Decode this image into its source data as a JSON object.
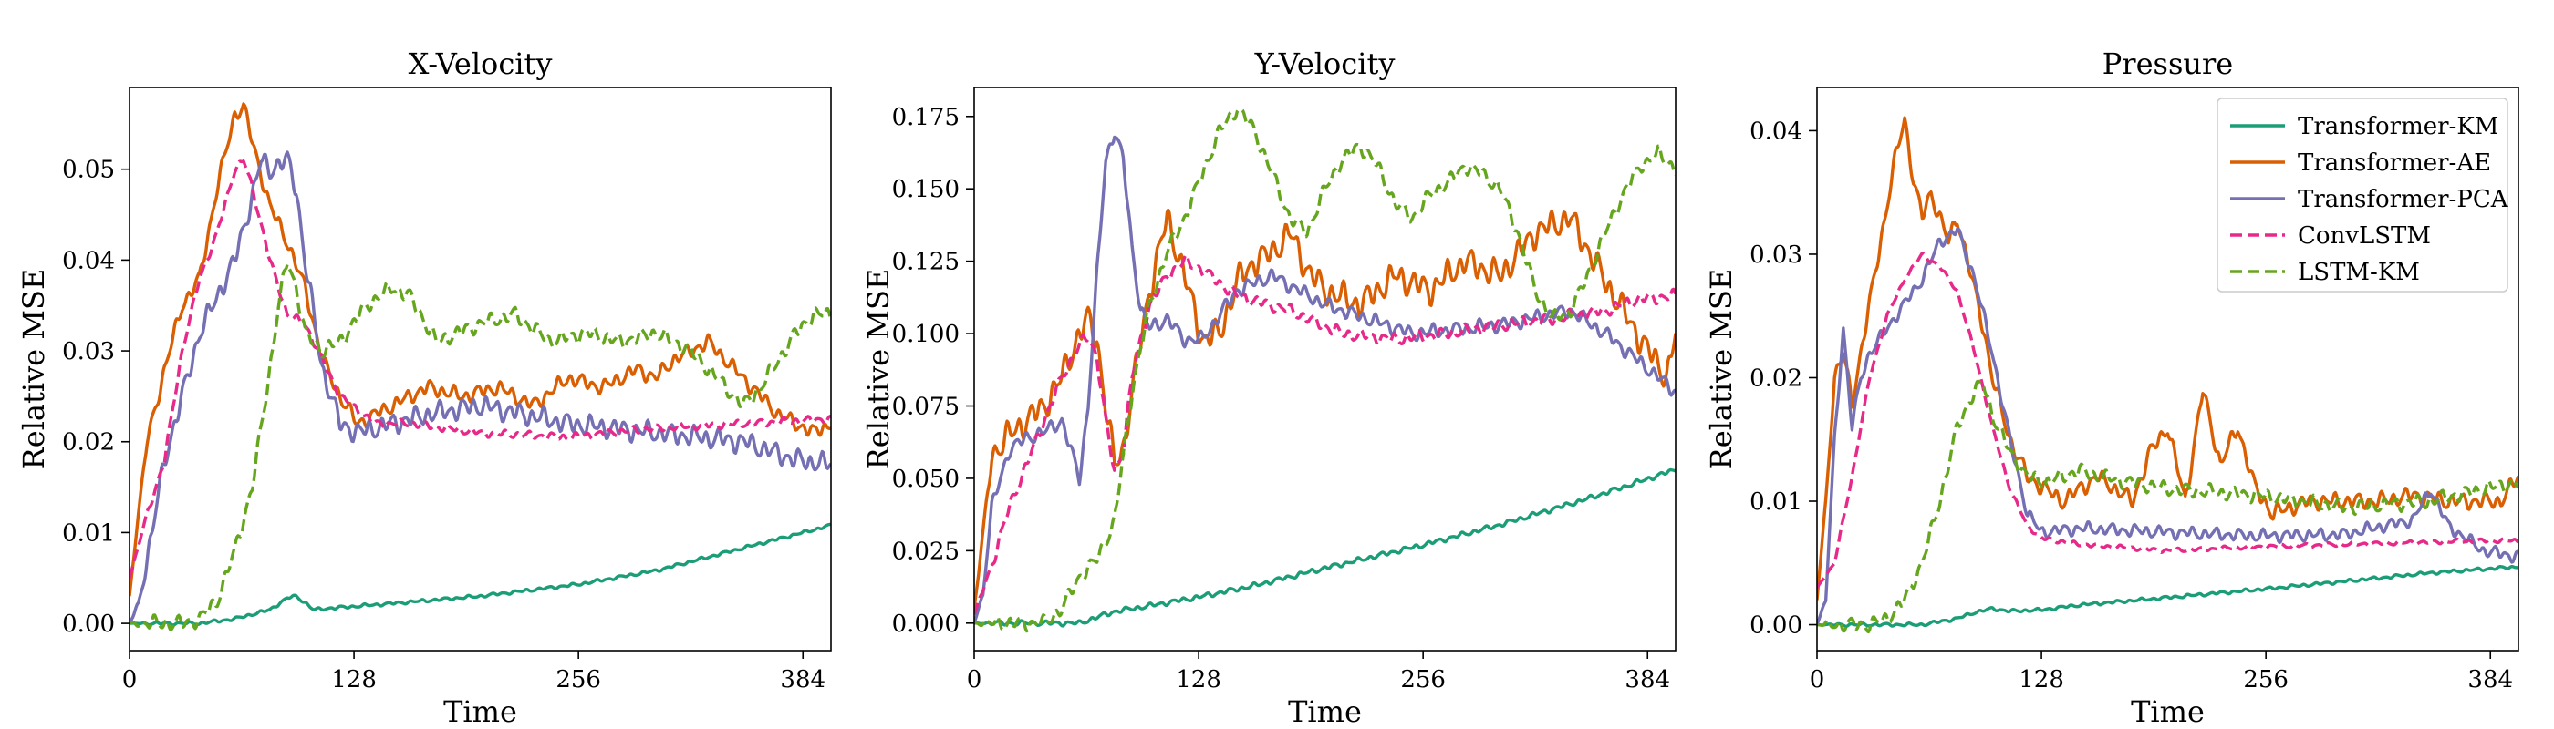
{
  "figure": {
    "colors": {
      "Transformer-KM": "#1b9e77",
      "Transformer-AE": "#d95f02",
      "Transformer-PCA": "#7570b3",
      "ConvLSTM": "#e7298a",
      "LSTM-KM": "#66a61e"
    },
    "legend": [
      {
        "name": "Transformer-KM",
        "style": "solid"
      },
      {
        "name": "Transformer-AE",
        "style": "solid"
      },
      {
        "name": "Transformer-PCA",
        "style": "solid"
      },
      {
        "name": "ConvLSTM",
        "style": "dashed"
      },
      {
        "name": "LSTM-KM",
        "style": "dashed"
      }
    ],
    "legend_location": "top-right of the Pressure panel"
  },
  "chart_data": [
    {
      "type": "line",
      "title": "X-Velocity",
      "xlabel": "Time",
      "ylabel": "Relative MSE",
      "xlim": [
        0,
        400
      ],
      "ylim": [
        -0.003,
        0.059
      ],
      "xticks": [
        0,
        128,
        256,
        384
      ],
      "yticks": [
        0.0,
        0.01,
        0.02,
        0.03,
        0.04,
        0.05
      ],
      "ytick_labels": [
        "0.00",
        "0.01",
        "0.02",
        "0.03",
        "0.04",
        "0.05"
      ],
      "series": [
        {
          "name": "Transformer-KM",
          "x": [
            0,
            40,
            60,
            80,
            90,
            95,
            100,
            105,
            110,
            150,
            200,
            256,
            300,
            350,
            400
          ],
          "y": [
            0.0,
            0.0,
            0.0005,
            0.0015,
            0.0028,
            0.003,
            0.0023,
            0.0015,
            0.0016,
            0.0022,
            0.003,
            0.0043,
            0.0058,
            0.0083,
            0.0108
          ],
          "wiggle": 0.0002
        },
        {
          "name": "Transformer-AE",
          "x": [
            0,
            5,
            10,
            20,
            30,
            40,
            50,
            60,
            65,
            70,
            80,
            90,
            100,
            110,
            120,
            130,
            150,
            170,
            190,
            210,
            230,
            250,
            270,
            290,
            300,
            310,
            330,
            350,
            370,
            390,
            400
          ],
          "y": [
            0.003,
            0.012,
            0.02,
            0.028,
            0.035,
            0.038,
            0.048,
            0.056,
            0.057,
            0.053,
            0.046,
            0.042,
            0.037,
            0.029,
            0.025,
            0.022,
            0.024,
            0.026,
            0.025,
            0.026,
            0.024,
            0.027,
            0.026,
            0.028,
            0.027,
            0.029,
            0.031,
            0.027,
            0.023,
            0.021,
            0.022
          ],
          "wiggle": 0.001
        },
        {
          "name": "Transformer-PCA",
          "x": [
            0,
            5,
            10,
            20,
            30,
            40,
            50,
            60,
            70,
            75,
            80,
            90,
            95,
            100,
            110,
            120,
            130,
            150,
            170,
            200,
            250,
            300,
            350,
            380,
            400
          ],
          "y": [
            0.0,
            0.002,
            0.007,
            0.018,
            0.025,
            0.032,
            0.036,
            0.04,
            0.047,
            0.051,
            0.05,
            0.051,
            0.048,
            0.04,
            0.028,
            0.022,
            0.021,
            0.022,
            0.023,
            0.024,
            0.022,
            0.021,
            0.02,
            0.018,
            0.0175
          ],
          "wiggle": 0.0014
        },
        {
          "name": "ConvLSTM",
          "x": [
            0,
            10,
            20,
            30,
            40,
            50,
            60,
            65,
            70,
            80,
            90,
            100,
            110,
            120,
            140,
            160,
            200,
            250,
            300,
            350,
            400
          ],
          "y": [
            0.005,
            0.012,
            0.018,
            0.03,
            0.038,
            0.043,
            0.05,
            0.051,
            0.048,
            0.04,
            0.034,
            0.033,
            0.029,
            0.025,
            0.022,
            0.022,
            0.021,
            0.0205,
            0.0215,
            0.022,
            0.0225
          ],
          "wiggle": 0.0005
        },
        {
          "name": "LSTM-KM",
          "x": [
            0,
            30,
            40,
            50,
            60,
            70,
            80,
            85,
            90,
            95,
            100,
            110,
            120,
            135,
            150,
            160,
            175,
            200,
            220,
            240,
            260,
            280,
            300,
            320,
            330,
            340,
            350,
            360,
            370,
            380,
            390,
            400
          ],
          "y": [
            0.0,
            0.0,
            0.0005,
            0.0025,
            0.008,
            0.015,
            0.028,
            0.035,
            0.04,
            0.037,
            0.032,
            0.03,
            0.031,
            0.035,
            0.037,
            0.036,
            0.031,
            0.033,
            0.034,
            0.031,
            0.032,
            0.031,
            0.032,
            0.03,
            0.028,
            0.026,
            0.024,
            0.026,
            0.029,
            0.032,
            0.034,
            0.034
          ],
          "wiggle": 0.001
        }
      ]
    },
    {
      "type": "line",
      "title": "Y-Velocity",
      "xlabel": "Time",
      "ylabel": "Relative MSE",
      "xlim": [
        0,
        400
      ],
      "ylim": [
        -0.0095,
        0.185
      ],
      "xticks": [
        0,
        128,
        256,
        384
      ],
      "yticks": [
        0.0,
        0.025,
        0.05,
        0.075,
        0.1,
        0.125,
        0.15,
        0.175
      ],
      "ytick_labels": [
        "0.000",
        "0.025",
        "0.050",
        "0.075",
        "0.100",
        "0.125",
        "0.150",
        "0.175"
      ],
      "series": [
        {
          "name": "Transformer-KM",
          "x": [
            0,
            60,
            80,
            100,
            128,
            160,
            200,
            256,
            300,
            350,
            400
          ],
          "y": [
            0.0,
            0.0,
            0.004,
            0.006,
            0.009,
            0.013,
            0.019,
            0.027,
            0.034,
            0.043,
            0.053
          ],
          "wiggle": 0.001
        },
        {
          "name": "Transformer-AE",
          "x": [
            0,
            5,
            10,
            20,
            30,
            40,
            50,
            60,
            65,
            70,
            75,
            80,
            85,
            90,
            100,
            110,
            120,
            130,
            140,
            150,
            160,
            170,
            180,
            190,
            200,
            220,
            240,
            260,
            280,
            300,
            320,
            340,
            360,
            380,
            395,
            400
          ],
          "y": [
            0.005,
            0.03,
            0.058,
            0.065,
            0.07,
            0.075,
            0.085,
            0.1,
            0.105,
            0.098,
            0.075,
            0.055,
            0.06,
            0.08,
            0.115,
            0.14,
            0.12,
            0.098,
            0.1,
            0.118,
            0.125,
            0.128,
            0.135,
            0.122,
            0.115,
            0.11,
            0.12,
            0.115,
            0.125,
            0.12,
            0.135,
            0.14,
            0.118,
            0.098,
            0.085,
            0.1
          ],
          "wiggle": 0.006
        },
        {
          "name": "Transformer-PCA",
          "x": [
            0,
            5,
            10,
            20,
            30,
            40,
            50,
            55,
            60,
            65,
            70,
            75,
            80,
            85,
            90,
            95,
            100,
            110,
            120,
            130,
            150,
            170,
            200,
            250,
            300,
            340,
            360,
            380,
            400
          ],
          "y": [
            0.0,
            0.01,
            0.04,
            0.06,
            0.064,
            0.066,
            0.07,
            0.06,
            0.05,
            0.075,
            0.12,
            0.16,
            0.17,
            0.16,
            0.13,
            0.108,
            0.102,
            0.105,
            0.098,
            0.098,
            0.115,
            0.12,
            0.11,
            0.1,
            0.103,
            0.108,
            0.1,
            0.09,
            0.08
          ],
          "wiggle": 0.003
        },
        {
          "name": "ConvLSTM",
          "x": [
            0,
            10,
            20,
            30,
            40,
            50,
            60,
            65,
            70,
            75,
            80,
            85,
            90,
            100,
            110,
            120,
            130,
            150,
            180,
            210,
            240,
            270,
            300,
            330,
            360,
            380,
            400
          ],
          "y": [
            0.003,
            0.02,
            0.04,
            0.055,
            0.07,
            0.085,
            0.096,
            0.099,
            0.092,
            0.07,
            0.052,
            0.06,
            0.085,
            0.11,
            0.12,
            0.125,
            0.122,
            0.113,
            0.108,
            0.1,
            0.098,
            0.1,
            0.103,
            0.105,
            0.108,
            0.112,
            0.113
          ],
          "wiggle": 0.0025
        },
        {
          "name": "LSTM-KM",
          "x": [
            0,
            40,
            50,
            60,
            70,
            80,
            90,
            100,
            110,
            120,
            130,
            140,
            150,
            160,
            170,
            180,
            190,
            200,
            210,
            220,
            230,
            240,
            250,
            260,
            270,
            280,
            290,
            300,
            310,
            320,
            330,
            340,
            350,
            360,
            370,
            380,
            390,
            400
          ],
          "y": [
            0.0,
            0.0,
            0.005,
            0.016,
            0.022,
            0.035,
            0.08,
            0.11,
            0.128,
            0.14,
            0.155,
            0.17,
            0.178,
            0.17,
            0.155,
            0.14,
            0.135,
            0.15,
            0.16,
            0.165,
            0.158,
            0.145,
            0.14,
            0.148,
            0.152,
            0.158,
            0.155,
            0.15,
            0.135,
            0.115,
            0.105,
            0.108,
            0.12,
            0.135,
            0.148,
            0.158,
            0.162,
            0.157
          ],
          "wiggle": 0.003
        }
      ]
    },
    {
      "type": "line",
      "title": "Pressure",
      "xlabel": "Time",
      "ylabel": "Relative MSE",
      "xlim": [
        0,
        400
      ],
      "ylim": [
        -0.0021,
        0.0435
      ],
      "xticks": [
        0,
        128,
        256,
        384
      ],
      "yticks": [
        0.0,
        0.01,
        0.02,
        0.03,
        0.04
      ],
      "ytick_labels": [
        "0.00",
        "0.01",
        "0.02",
        "0.03",
        "0.04"
      ],
      "series": [
        {
          "name": "Transformer-KM",
          "x": [
            0,
            60,
            80,
            90,
            100,
            110,
            128,
            150,
            200,
            256,
            300,
            350,
            400
          ],
          "y": [
            0.0,
            0.0,
            0.0005,
            0.001,
            0.0013,
            0.0011,
            0.0012,
            0.0016,
            0.0022,
            0.0029,
            0.0035,
            0.0042,
            0.0047
          ],
          "wiggle": 0.00015
        },
        {
          "name": "Transformer-AE",
          "x": [
            0,
            5,
            10,
            15,
            20,
            25,
            30,
            35,
            40,
            45,
            50,
            55,
            60,
            65,
            70,
            75,
            80,
            85,
            90,
            95,
            100,
            110,
            120,
            130,
            140,
            150,
            160,
            170,
            180,
            190,
            200,
            210,
            220,
            230,
            240,
            250,
            260,
            280,
            300,
            320,
            340,
            360,
            380,
            390,
            400
          ],
          "y": [
            0.002,
            0.01,
            0.02,
            0.022,
            0.018,
            0.022,
            0.026,
            0.03,
            0.034,
            0.038,
            0.041,
            0.036,
            0.033,
            0.035,
            0.033,
            0.031,
            0.033,
            0.03,
            0.027,
            0.024,
            0.02,
            0.015,
            0.012,
            0.011,
            0.01,
            0.011,
            0.012,
            0.011,
            0.01,
            0.014,
            0.016,
            0.01,
            0.019,
            0.013,
            0.016,
            0.011,
            0.009,
            0.01,
            0.01,
            0.01,
            0.0105,
            0.01,
            0.01,
            0.01,
            0.012
          ],
          "wiggle": 0.0008
        },
        {
          "name": "Transformer-PCA",
          "x": [
            0,
            5,
            10,
            15,
            20,
            25,
            30,
            40,
            50,
            60,
            70,
            80,
            90,
            100,
            110,
            120,
            128,
            150,
            200,
            250,
            300,
            340,
            350,
            360,
            380,
            400
          ],
          "y": [
            0.0,
            0.002,
            0.015,
            0.024,
            0.016,
            0.02,
            0.022,
            0.024,
            0.026,
            0.028,
            0.031,
            0.032,
            0.028,
            0.022,
            0.015,
            0.009,
            0.0075,
            0.0078,
            0.0075,
            0.0072,
            0.0073,
            0.0085,
            0.011,
            0.008,
            0.006,
            0.0055
          ],
          "wiggle": 0.0006
        },
        {
          "name": "ConvLSTM",
          "x": [
            0,
            10,
            20,
            30,
            40,
            50,
            60,
            70,
            80,
            90,
            100,
            110,
            120,
            128,
            150,
            200,
            250,
            300,
            350,
            380,
            400
          ],
          "y": [
            0.003,
            0.005,
            0.012,
            0.02,
            0.025,
            0.028,
            0.03,
            0.029,
            0.027,
            0.022,
            0.016,
            0.011,
            0.008,
            0.007,
            0.0065,
            0.006,
            0.0063,
            0.0065,
            0.0067,
            0.0068,
            0.0068
          ],
          "wiggle": 0.0002
        },
        {
          "name": "LSTM-KM",
          "x": [
            0,
            30,
            40,
            50,
            60,
            70,
            80,
            90,
            95,
            100,
            110,
            120,
            130,
            140,
            150,
            160,
            180,
            200,
            250,
            300,
            350,
            380,
            400
          ],
          "y": [
            0.0,
            0.0,
            0.0005,
            0.002,
            0.005,
            0.01,
            0.016,
            0.019,
            0.0195,
            0.017,
            0.014,
            0.012,
            0.0115,
            0.012,
            0.0125,
            0.012,
            0.0115,
            0.011,
            0.0105,
            0.0095,
            0.01,
            0.011,
            0.0115
          ],
          "wiggle": 0.0007
        }
      ]
    }
  ]
}
